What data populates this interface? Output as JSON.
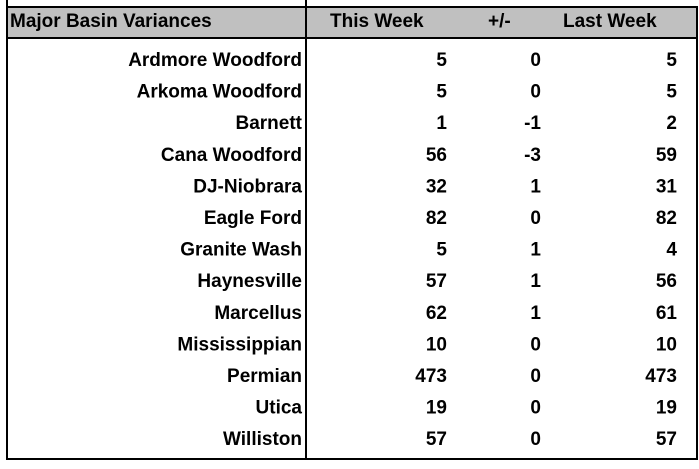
{
  "table": {
    "header": [
      "Major Basin Variances",
      "This Week",
      "+/-",
      "Last Week"
    ],
    "rows": [
      [
        "Ardmore Woodford",
        5,
        0,
        5
      ],
      [
        "Arkoma Woodford",
        5,
        0,
        5
      ],
      [
        "Barnett",
        1,
        -1,
        2
      ],
      [
        "Cana Woodford",
        56,
        -3,
        59
      ],
      [
        "DJ-Niobrara",
        32,
        1,
        31
      ],
      [
        "Eagle Ford",
        82,
        0,
        82
      ],
      [
        "Granite Wash",
        5,
        1,
        4
      ],
      [
        "Haynesville",
        57,
        1,
        56
      ],
      [
        "Marcellus",
        62,
        1,
        61
      ],
      [
        "Mississippian",
        10,
        0,
        10
      ],
      [
        "Permian",
        473,
        0,
        473
      ],
      [
        "Utica",
        19,
        0,
        19
      ],
      [
        "Williston",
        57,
        0,
        57
      ]
    ]
  }
}
